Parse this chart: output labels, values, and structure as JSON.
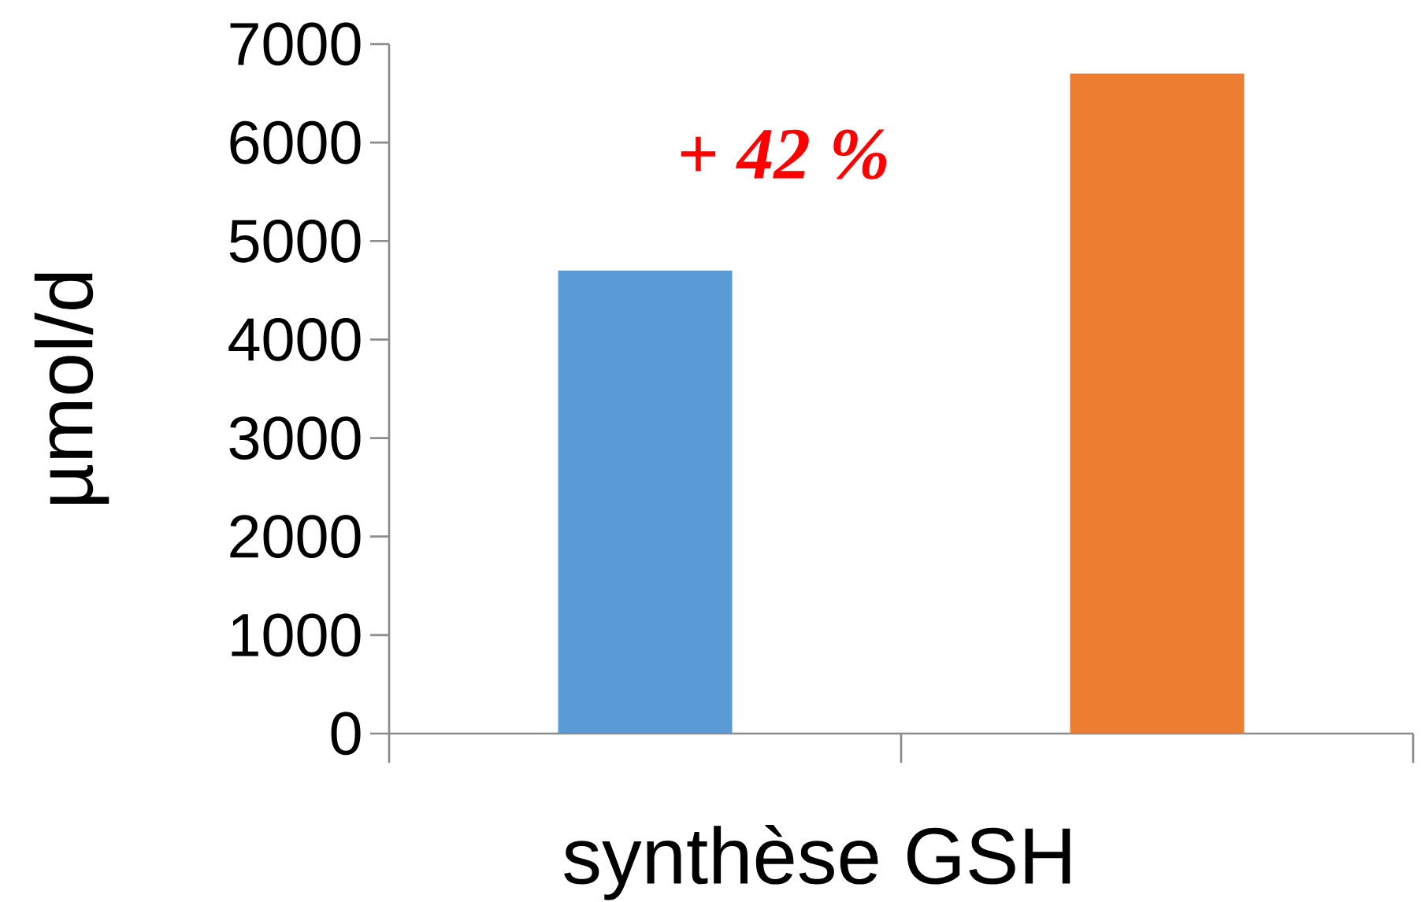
{
  "chart_data": {
    "type": "bar",
    "xlabel": "synthèse GSH",
    "ylabel": "µmol/d",
    "categories": [
      null,
      null
    ],
    "values": [
      4700,
      6700
    ],
    "colors": [
      "#5b9bd5",
      "#ed7d31"
    ],
    "ylim": [
      0,
      7000
    ],
    "yticks": [
      0,
      1000,
      2000,
      3000,
      4000,
      5000,
      6000,
      7000
    ],
    "annotations": [
      "+ 42 %"
    ],
    "grid": false
  }
}
